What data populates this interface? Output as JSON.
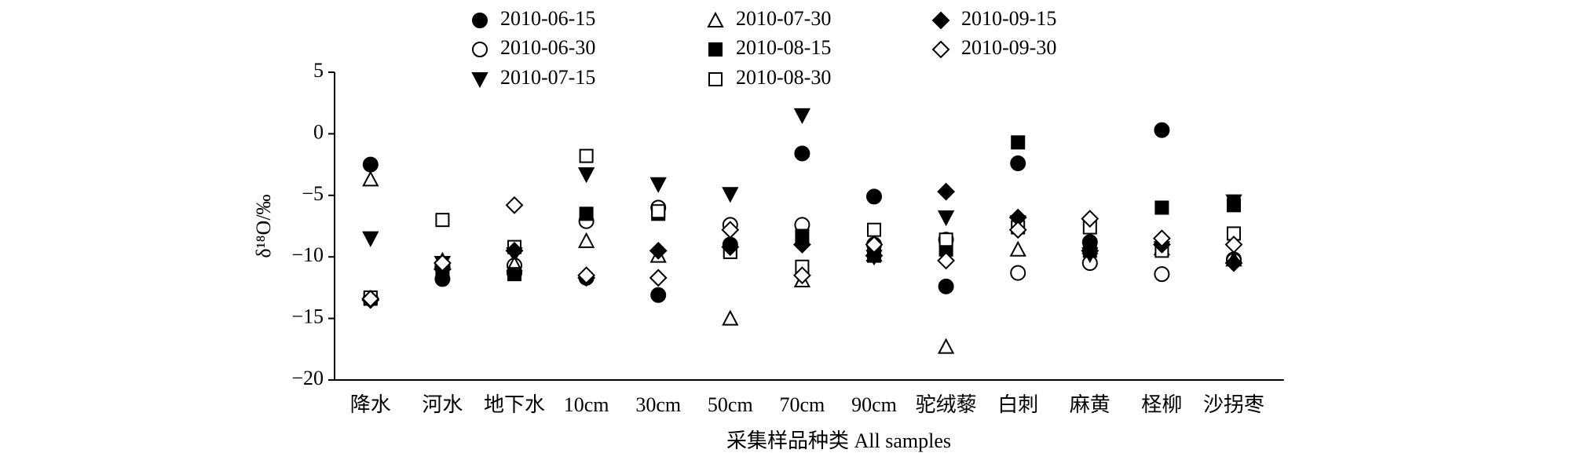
{
  "chart_data": {
    "type": "scatter",
    "ylabel": "δ¹⁸O/‰",
    "xlabel": "采集样品种类 All samples",
    "categories": [
      "降水",
      "河水",
      "地下水",
      "10cm",
      "30cm",
      "50cm",
      "70cm",
      "90cm",
      "驼绒藜",
      "白刺",
      "麻黄",
      "柽柳",
      "沙拐枣"
    ],
    "ylim": [
      -20,
      5
    ],
    "yticks": [
      {
        "value": -20,
        "label": "−20"
      },
      {
        "value": -15,
        "label": "−15"
      },
      {
        "value": -10,
        "label": "−10"
      },
      {
        "value": -5,
        "label": "−5"
      },
      0,
      5
    ],
    "series": [
      {
        "name": "2010-06-15",
        "marker": "circle",
        "filled": true,
        "color": "#000000",
        "values": [
          -2.5,
          -11.8,
          -11.3,
          -11.7,
          -13.1,
          -9.0,
          -1.6,
          -5.1,
          -12.4,
          -2.4,
          -8.8,
          0.3,
          -10.2
        ]
      },
      {
        "name": "2010-06-30",
        "marker": "circle",
        "filled": false,
        "color": "#000000",
        "values": [
          -13.4,
          -10.7,
          -10.7,
          -7.1,
          -6.0,
          -7.4,
          -7.4,
          -9.0,
          -8.6,
          -11.3,
          -10.5,
          -11.4,
          -10.3
        ]
      },
      {
        "name": "2010-07-15",
        "marker": "triangle-down",
        "filled": true,
        "color": "#000000",
        "values": [
          -8.5,
          -10.5,
          -9.8,
          -3.3,
          -4.1,
          -4.9,
          1.5,
          -10.0,
          -6.8,
          -7.2,
          -9.8,
          -9.3,
          -5.5
        ]
      },
      {
        "name": "2010-07-30",
        "marker": "triangle-up",
        "filled": false,
        "color": "#000000",
        "values": [
          -3.7,
          -10.3,
          -10.6,
          -8.7,
          -9.9,
          -15.0,
          -11.9,
          -9.8,
          -17.3,
          -9.4,
          -9.2,
          -9.3,
          -10.2
        ]
      },
      {
        "name": "2010-08-15",
        "marker": "square",
        "filled": true,
        "color": "#000000",
        "values": [
          -13.4,
          -11.0,
          -11.4,
          -6.5,
          -6.5,
          -9.5,
          -8.3,
          -9.9,
          -9.4,
          -0.7,
          -9.5,
          -6.0,
          -5.8
        ]
      },
      {
        "name": "2010-08-30",
        "marker": "square",
        "filled": false,
        "color": "#000000",
        "values": [
          -13.3,
          -7.0,
          -9.2,
          -1.8,
          -6.3,
          -9.6,
          -10.8,
          -7.8,
          -8.6,
          -7.6,
          -7.6,
          -9.5,
          -8.1
        ]
      },
      {
        "name": "2010-09-15",
        "marker": "diamond",
        "filled": true,
        "color": "#000000",
        "values": [
          -13.5,
          -11.0,
          -9.5,
          -11.7,
          -9.5,
          -9.2,
          -9.0,
          -9.9,
          -4.7,
          -6.8,
          -9.5,
          -9.0,
          -10.5
        ]
      },
      {
        "name": "2010-09-30",
        "marker": "diamond",
        "filled": false,
        "color": "#000000",
        "values": [
          -13.4,
          -10.5,
          -5.8,
          -11.5,
          -11.7,
          -7.8,
          -11.5,
          -9.0,
          -10.3,
          -7.8,
          -6.9,
          -8.5,
          -9.0
        ]
      }
    ]
  }
}
